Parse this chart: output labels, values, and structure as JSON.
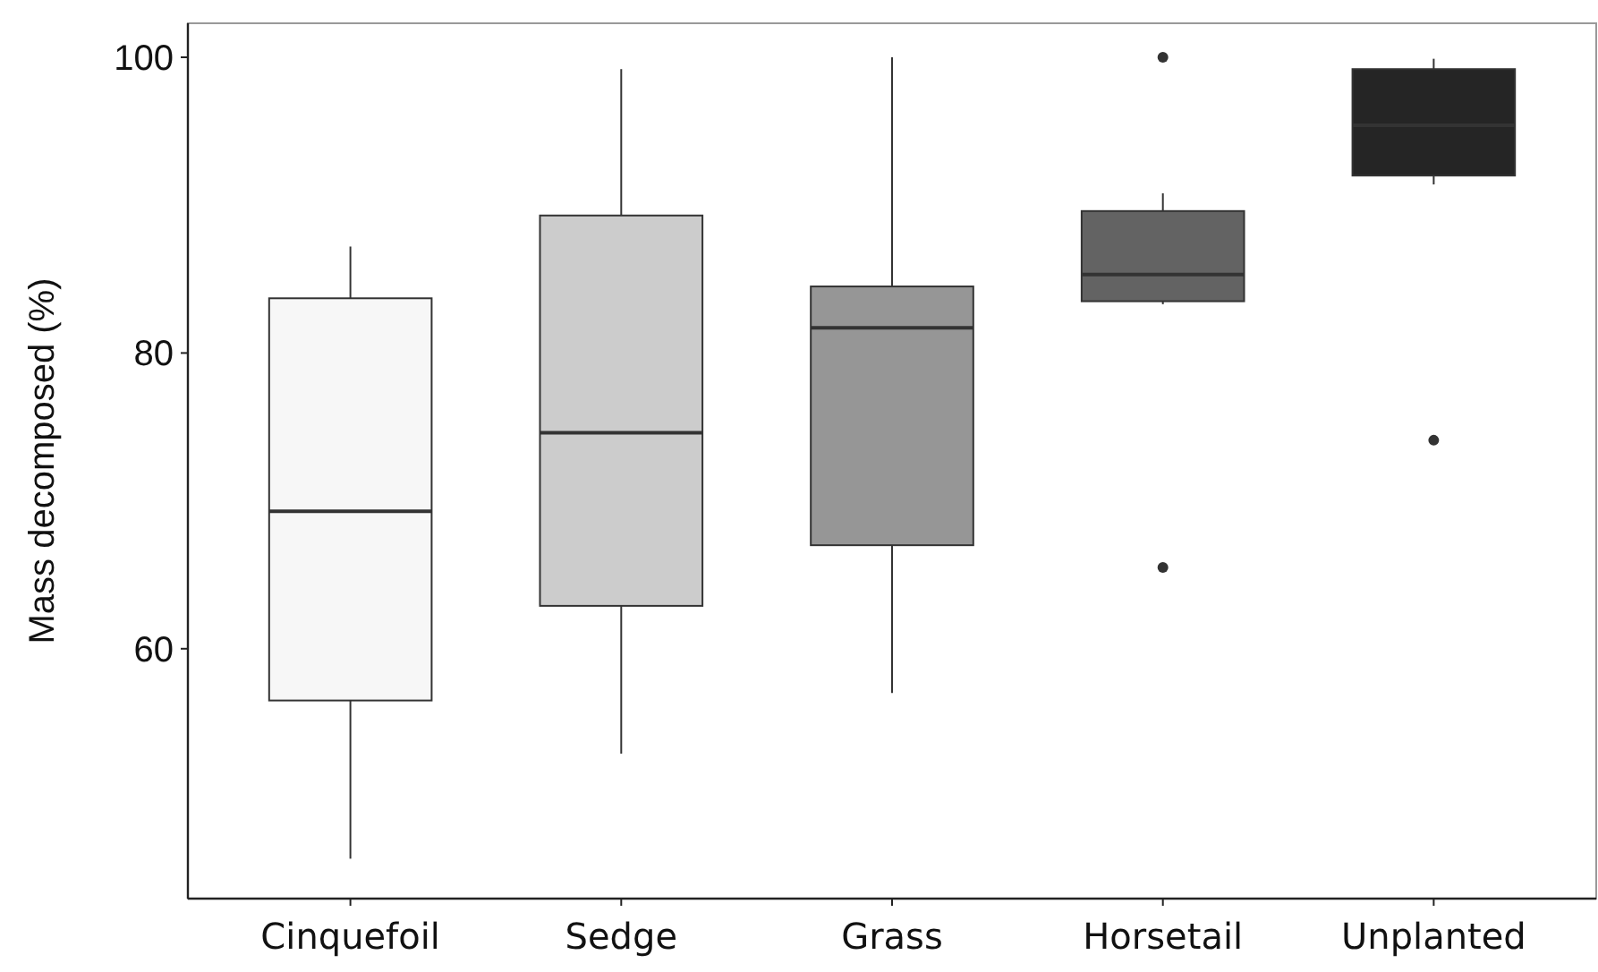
{
  "chart_data": {
    "type": "box",
    "ylabel": "Mass decomposed (%)",
    "categories": [
      "Cinquefoil",
      "Sedge",
      "Grass",
      "Horsetail",
      "Unplanted"
    ],
    "colors": [
      "#f7f7f7",
      "#cccccc",
      "#969696",
      "#636363",
      "#252525"
    ],
    "boxes": [
      {
        "low": 45.8,
        "q1": 56.5,
        "median": 69.3,
        "q3": 83.7,
        "high": 87.2
      },
      {
        "low": 52.9,
        "q1": 62.9,
        "median": 74.6,
        "q3": 89.3,
        "high": 99.2
      },
      {
        "low": 57.0,
        "q1": 67.0,
        "median": 81.7,
        "q3": 84.5,
        "high": 100
      },
      {
        "low": 83.3,
        "q1": 83.5,
        "median": 85.3,
        "q3": 89.6,
        "high": 90.8,
        "outliers": [
          100,
          65.5
        ]
      },
      {
        "low": 91.4,
        "q1": 92.0,
        "median": 95.4,
        "q3": 99.2,
        "high": 99.9,
        "outliers": [
          74.1
        ]
      }
    ],
    "ylim": [
      43.1,
      102.3
    ],
    "yticks": [
      60,
      80,
      100
    ],
    "grid": false
  }
}
